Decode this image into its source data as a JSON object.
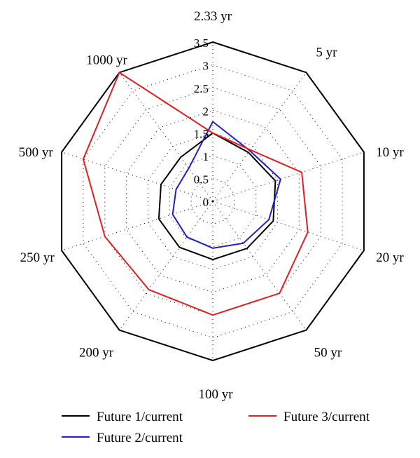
{
  "chart_data": {
    "type": "radar",
    "categories": [
      "2.33 yr",
      "5 yr",
      "10 yr",
      "20 yr",
      "50 yr",
      "100 yr",
      "200 yr",
      "250 yr",
      "500 yr",
      "1000 yr"
    ],
    "rlim": [
      0,
      3.5
    ],
    "ticks": [
      0,
      0.5,
      1,
      1.5,
      2,
      2.5,
      3,
      3.5
    ],
    "tick_labels": [
      "0",
      "0.5",
      "1",
      "1.5",
      "2",
      "2.5",
      "3",
      "3.5"
    ],
    "grid": "dotted",
    "legend_position": "bottom",
    "series": [
      {
        "name": "Future 1/current",
        "color": "#000000",
        "values": [
          1.5,
          1.33,
          1.45,
          1.4,
          1.28,
          1.28,
          1.25,
          1.25,
          1.2,
          1.2
        ]
      },
      {
        "name": "Future 2/current",
        "color": "#1f1fc8",
        "values": [
          1.75,
          1.38,
          1.57,
          1.3,
          1.14,
          1.03,
          0.97,
          0.93,
          0.85,
          0.9
        ]
      },
      {
        "name": "Future 3/current",
        "color": "#e02020",
        "values": [
          1.5,
          1.4,
          2.06,
          2.2,
          2.5,
          2.5,
          2.4,
          2.5,
          3.0,
          3.5
        ]
      }
    ]
  }
}
